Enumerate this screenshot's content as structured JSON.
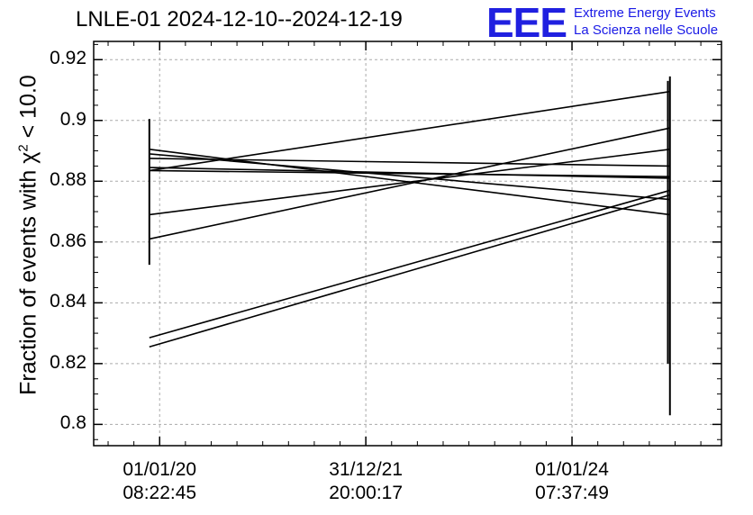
{
  "title": "LNLE-01 2024-12-10--2024-12-19",
  "logo": {
    "letters": "EEE",
    "line1": "Extreme Energy Events",
    "line2": "La Scienza nelle Scuole",
    "color": "#1a1ae6"
  },
  "chart_data": {
    "type": "line",
    "title": "LNLE-01 2024-12-10--2024-12-19",
    "ylabel_prefix": "Fraction of events with ",
    "ylabel_symbol": "χ",
    "ylabel_sup": "2",
    "ylabel_suffix": " < 10.0",
    "ylim": [
      0.793,
      0.926
    ],
    "yticks": [
      {
        "value": 0.8,
        "label": "0.8"
      },
      {
        "value": 0.82,
        "label": "0.82"
      },
      {
        "value": 0.84,
        "label": "0.84"
      },
      {
        "value": 0.86,
        "label": "0.86"
      },
      {
        "value": 0.88,
        "label": "0.88"
      },
      {
        "value": 0.9,
        "label": "0.9"
      },
      {
        "value": 0.92,
        "label": "0.92"
      }
    ],
    "xlim": [
      2019.36,
      2025.45
    ],
    "xticks": [
      {
        "value": 2020.0,
        "date": "01/01/20",
        "time": "08:22:45"
      },
      {
        "value": 2022.0,
        "date": "31/12/21",
        "time": "20:00:17"
      },
      {
        "value": 2024.0,
        "date": "01/01/24",
        "time": "07:37:49"
      }
    ],
    "grid": true,
    "segments": [
      {
        "x": [
          2019.9,
          2024.95
        ],
        "y": [
          0.8285,
          0.877
        ]
      },
      {
        "x": [
          2019.9,
          2024.95
        ],
        "y": [
          0.8255,
          0.8755
        ]
      },
      {
        "x": [
          2019.9,
          2024.95
        ],
        "y": [
          0.861,
          0.8975
        ]
      },
      {
        "x": [
          2019.9,
          2024.95
        ],
        "y": [
          0.869,
          0.8905
        ]
      },
      {
        "x": [
          2019.9,
          2024.95
        ],
        "y": [
          0.8835,
          0.9095
        ]
      },
      {
        "x": [
          2019.9,
          2024.95
        ],
        "y": [
          0.8905,
          0.869
        ]
      },
      {
        "x": [
          2019.9,
          2024.95
        ],
        "y": [
          0.889,
          0.874
        ]
      },
      {
        "x": [
          2019.9,
          2024.95
        ],
        "y": [
          0.8875,
          0.885
        ]
      },
      {
        "x": [
          2019.9,
          2024.95
        ],
        "y": [
          0.8835,
          0.8815
        ]
      },
      {
        "x": [
          2019.9,
          2024.95
        ],
        "y": [
          0.8845,
          0.881
        ]
      }
    ],
    "verticals": [
      {
        "x": 2019.9,
        "y": [
          0.8525,
          0.9005
        ]
      },
      {
        "x": 2024.95,
        "y": [
          0.803,
          0.9145
        ]
      },
      {
        "x": 2024.93,
        "y": [
          0.82,
          0.913
        ]
      }
    ]
  }
}
